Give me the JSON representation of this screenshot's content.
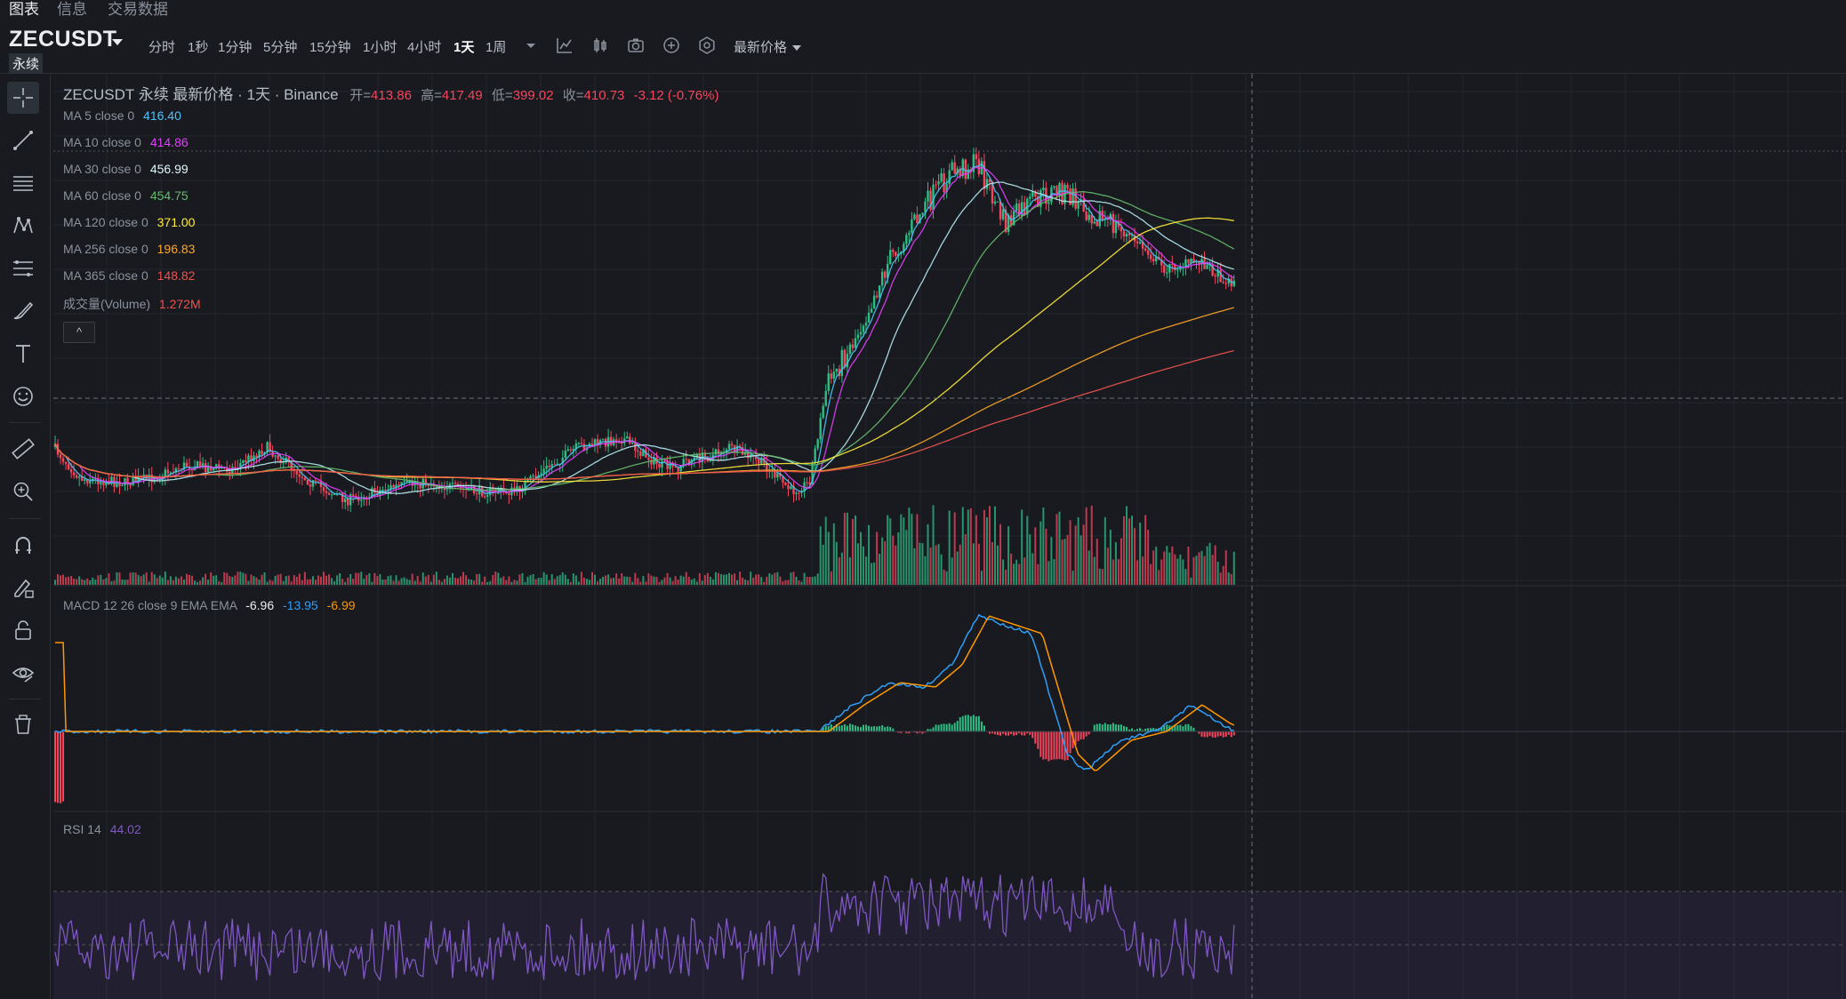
{
  "nav": {
    "tabs": [
      "图表",
      "信息",
      "交易数据"
    ]
  },
  "symbol": {
    "name": "ZECUSDT",
    "type": "永续"
  },
  "timeframes": [
    {
      "label": "分时",
      "active": false
    },
    {
      "label": "1秒",
      "active": false
    },
    {
      "label": "1分钟",
      "active": false
    },
    {
      "label": "5分钟",
      "active": false
    },
    {
      "label": "15分钟",
      "active": false
    },
    {
      "label": "1小时",
      "active": false
    },
    {
      "label": "4小时",
      "active": false
    },
    {
      "label": "1天",
      "active": true
    },
    {
      "label": "1周",
      "active": false
    }
  ],
  "price_type": "最新价格",
  "toolbar_icons": [
    "chevron-down-icon",
    "indicator-icon",
    "candle-type-icon",
    "camera-icon",
    "add-icon",
    "settings-icon"
  ],
  "left_tools": [
    "crosshair-icon",
    "trendline-icon",
    "horizontal-lines-icon",
    "pattern-icon",
    "fib-icon",
    "brush-icon",
    "text-icon",
    "emoji-icon",
    "ruler-icon",
    "zoom-in-icon",
    "magnet-icon",
    "lock-drawing-icon",
    "lock-icon",
    "eye-icon",
    "trash-icon"
  ],
  "legend": {
    "title": "ZECUSDT 永续 最新价格 · 1天 · Binance",
    "ohlc": {
      "open_label": "开=",
      "open": "413.86",
      "high_label": "高=",
      "high": "417.49",
      "low_label": "低=",
      "low": "399.02",
      "close_label": "收=",
      "close": "410.73",
      "change": "-3.12 (-0.76%)"
    },
    "ma": [
      {
        "label": "MA 5 close 0",
        "value": "416.40",
        "color": "#4fc3f7"
      },
      {
        "label": "MA 10 close 0",
        "value": "414.86",
        "color": "#e040fb"
      },
      {
        "label": "MA 30 close 0",
        "value": "456.99",
        "color": "#b2ebf2"
      },
      {
        "label": "MA 60 close 0",
        "value": "454.75",
        "color": "#66bb6a"
      },
      {
        "label": "MA 120 close 0",
        "value": "371.00",
        "color": "#ffeb3b"
      },
      {
        "label": "MA 256 close 0",
        "value": "196.83",
        "color": "#ffa726"
      },
      {
        "label": "MA 365 close 0",
        "value": "148.82",
        "color": "#ef5350"
      }
    ],
    "volume": {
      "label": "成交量(Volume)",
      "value": "1.272M",
      "color": "#ef5350"
    },
    "collapse": "^"
  },
  "macd": {
    "label": "MACD 12 26 close 9 EMA EMA",
    "v1": "-6.96",
    "v2": "-13.95",
    "v3": "-6.99"
  },
  "rsi": {
    "label": "RSI 14",
    "value": "44.02"
  },
  "colors": {
    "up": "#2ebd85",
    "down": "#f6465d",
    "bg": "#181a20",
    "grid": "#2b2f36",
    "macd": "#2f9ff8",
    "signal": "#ff9800",
    "rsi": "#7e57c2"
  }
}
